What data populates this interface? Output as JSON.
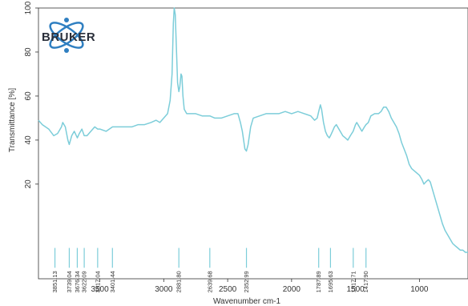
{
  "brand": {
    "logo_text": "BRUKER",
    "ring_color": "#2f7fc1",
    "dot_color": "#2f7fc1"
  },
  "chart_data": {
    "type": "line",
    "title": "",
    "xlabel": "Wavenumber cm-1",
    "ylabel": "Transmittance [%]",
    "xlim": [
      3980,
      620
    ],
    "ylim": [
      -23,
      100
    ],
    "x_reversed": true,
    "x_ticks": [
      3500,
      3000,
      2500,
      2000,
      1500,
      1000
    ],
    "y_ticks": [
      20,
      40,
      60,
      80,
      100
    ],
    "grid": false,
    "line_color": "#7ccdd9",
    "series": [
      {
        "values": [
          [
            3980,
            49
          ],
          [
            3950,
            47
          ],
          [
            3900,
            45
          ],
          [
            3860,
            42
          ],
          [
            3830,
            43
          ],
          [
            3800,
            46
          ],
          [
            3790,
            48
          ],
          [
            3770,
            46
          ],
          [
            3750,
            40
          ],
          [
            3739,
            38
          ],
          [
            3720,
            42
          ],
          [
            3700,
            44
          ],
          [
            3676,
            41
          ],
          [
            3660,
            43
          ],
          [
            3640,
            45
          ],
          [
            3622,
            42
          ],
          [
            3600,
            42
          ],
          [
            3570,
            44
          ],
          [
            3540,
            46
          ],
          [
            3517,
            45
          ],
          [
            3500,
            45
          ],
          [
            3450,
            44
          ],
          [
            3401,
            46
          ],
          [
            3350,
            46
          ],
          [
            3300,
            46
          ],
          [
            3250,
            46
          ],
          [
            3200,
            47
          ],
          [
            3150,
            47
          ],
          [
            3100,
            48
          ],
          [
            3060,
            49
          ],
          [
            3030,
            48
          ],
          [
            3000,
            50
          ],
          [
            2970,
            52
          ],
          [
            2950,
            58
          ],
          [
            2935,
            70
          ],
          [
            2925,
            93
          ],
          [
            2918,
            100
          ],
          [
            2910,
            97
          ],
          [
            2900,
            80
          ],
          [
            2892,
            66
          ],
          [
            2882,
            62
          ],
          [
            2875,
            64
          ],
          [
            2865,
            70
          ],
          [
            2858,
            69
          ],
          [
            2850,
            60
          ],
          [
            2840,
            54
          ],
          [
            2820,
            52
          ],
          [
            2800,
            52
          ],
          [
            2750,
            52
          ],
          [
            2700,
            51
          ],
          [
            2640,
            51
          ],
          [
            2600,
            50
          ],
          [
            2550,
            50
          ],
          [
            2500,
            51
          ],
          [
            2450,
            52
          ],
          [
            2420,
            52
          ],
          [
            2400,
            48
          ],
          [
            2385,
            44
          ],
          [
            2365,
            36
          ],
          [
            2353,
            35
          ],
          [
            2340,
            38
          ],
          [
            2320,
            46
          ],
          [
            2300,
            50
          ],
          [
            2250,
            51
          ],
          [
            2200,
            52
          ],
          [
            2150,
            52
          ],
          [
            2100,
            52
          ],
          [
            2050,
            53
          ],
          [
            2000,
            52
          ],
          [
            1950,
            53
          ],
          [
            1900,
            52
          ],
          [
            1850,
            51
          ],
          [
            1820,
            49
          ],
          [
            1800,
            50
          ],
          [
            1788,
            53
          ],
          [
            1775,
            56
          ],
          [
            1765,
            54
          ],
          [
            1750,
            48
          ],
          [
            1735,
            44
          ],
          [
            1720,
            42
          ],
          [
            1705,
            41
          ],
          [
            1696,
            42
          ],
          [
            1680,
            44
          ],
          [
            1665,
            46
          ],
          [
            1650,
            47
          ],
          [
            1640,
            46
          ],
          [
            1620,
            44
          ],
          [
            1600,
            42
          ],
          [
            1580,
            41
          ],
          [
            1560,
            40
          ],
          [
            1540,
            42
          ],
          [
            1518,
            44
          ],
          [
            1500,
            47
          ],
          [
            1490,
            48
          ],
          [
            1470,
            46
          ],
          [
            1450,
            44
          ],
          [
            1430,
            46
          ],
          [
            1418,
            47
          ],
          [
            1400,
            48
          ],
          [
            1380,
            51
          ],
          [
            1350,
            52
          ],
          [
            1320,
            52
          ],
          [
            1300,
            53
          ],
          [
            1280,
            55
          ],
          [
            1260,
            55
          ],
          [
            1240,
            53
          ],
          [
            1220,
            50
          ],
          [
            1200,
            48
          ],
          [
            1180,
            46
          ],
          [
            1160,
            43
          ],
          [
            1140,
            39
          ],
          [
            1120,
            36
          ],
          [
            1100,
            33
          ],
          [
            1080,
            29
          ],
          [
            1060,
            27
          ],
          [
            1040,
            26
          ],
          [
            1020,
            25
          ],
          [
            1000,
            24
          ],
          [
            980,
            22
          ],
          [
            965,
            20
          ],
          [
            950,
            21
          ],
          [
            930,
            22
          ],
          [
            915,
            21
          ],
          [
            900,
            18
          ],
          [
            880,
            14
          ],
          [
            860,
            10
          ],
          [
            840,
            6
          ],
          [
            820,
            2
          ],
          [
            800,
            -1
          ],
          [
            780,
            -3
          ],
          [
            760,
            -5
          ],
          [
            740,
            -7
          ],
          [
            720,
            -8
          ],
          [
            700,
            -9
          ],
          [
            680,
            -10
          ],
          [
            660,
            -10
          ],
          [
            640,
            -11
          ],
          [
            620,
            -11
          ]
        ]
      }
    ],
    "peaks": [
      {
        "x": 3851.13,
        "label": "3851.13"
      },
      {
        "x": 3739.04,
        "label": "3739.04"
      },
      {
        "x": 3676.34,
        "label": "3676.34"
      },
      {
        "x": 3622.09,
        "label": "3622.09"
      },
      {
        "x": 3517.04,
        "label": "3517.04"
      },
      {
        "x": 3401.44,
        "label": "3401.44"
      },
      {
        "x": 2881.8,
        "label": "2881.80"
      },
      {
        "x": 2639.68,
        "label": "2639.68"
      },
      {
        "x": 2352.99,
        "label": "2352.99"
      },
      {
        "x": 1787.89,
        "label": "1787.89"
      },
      {
        "x": 1695.63,
        "label": "1695.63"
      },
      {
        "x": 1517.71,
        "label": "1517.71"
      },
      {
        "x": 1417.9,
        "label": "1417.90"
      }
    ],
    "peak_marker_range": [
      -9,
      -18
    ]
  }
}
